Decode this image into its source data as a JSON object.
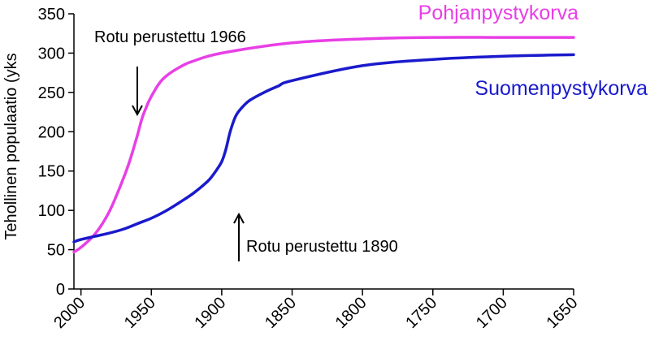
{
  "chart_data": {
    "type": "line",
    "ylabel": "Tehollinen populaatio (yks",
    "xlim": [
      2005,
      1650
    ],
    "ylim": [
      0,
      350
    ],
    "x_ticks": [
      2000,
      1950,
      1900,
      1850,
      1800,
      1750,
      1700,
      1650
    ],
    "x_tick_labels": [
      "2000",
      "1950",
      "1900",
      "1850",
      "1800",
      "1750",
      "1700",
      "1650"
    ],
    "y_ticks": [
      0,
      50,
      100,
      150,
      200,
      250,
      300,
      350
    ],
    "y_tick_labels": [
      "0",
      "50",
      "100",
      "150",
      "200",
      "250",
      "300",
      "350"
    ],
    "grid": false,
    "series": [
      {
        "name": "Pohjanpystykorva",
        "color": "#e83fe6",
        "x": [
          2005,
          2000,
          1990,
          1980,
          1970,
          1965,
          1960,
          1957,
          1955,
          1952,
          1950,
          1945,
          1940,
          1930,
          1920,
          1900,
          1850,
          1800,
          1750,
          1700,
          1650
        ],
        "y": [
          47,
          53,
          70,
          98,
          140,
          165,
          195,
          215,
          225,
          238,
          245,
          260,
          270,
          282,
          290,
          300,
          313,
          318,
          320,
          320,
          320
        ]
      },
      {
        "name": "Suomenpystykorva",
        "color": "#1a1acc",
        "x": [
          2005,
          2000,
          1990,
          1980,
          1970,
          1960,
          1950,
          1940,
          1930,
          1920,
          1910,
          1905,
          1900,
          1897,
          1894,
          1890,
          1885,
          1880,
          1870,
          1860,
          1850,
          1800,
          1750,
          1700,
          1650
        ],
        "y": [
          60,
          63,
          67,
          71,
          76,
          83,
          90,
          99,
          110,
          122,
          137,
          148,
          162,
          178,
          200,
          220,
          232,
          240,
          250,
          258,
          265,
          284,
          292,
          296,
          298
        ]
      }
    ],
    "annotations": [
      {
        "text": "Rotu perustettu 1966",
        "x": 1966,
        "y": 230,
        "arrow": "down"
      },
      {
        "text": "Rotu perustettu 1890",
        "x": 1895,
        "y": 45,
        "arrow": "up"
      }
    ]
  }
}
